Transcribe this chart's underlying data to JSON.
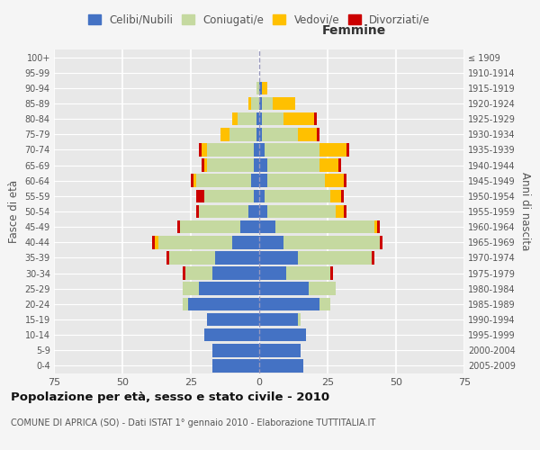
{
  "age_groups": [
    "0-4",
    "5-9",
    "10-14",
    "15-19",
    "20-24",
    "25-29",
    "30-34",
    "35-39",
    "40-44",
    "45-49",
    "50-54",
    "55-59",
    "60-64",
    "65-69",
    "70-74",
    "75-79",
    "80-84",
    "85-89",
    "90-94",
    "95-99",
    "100+"
  ],
  "birth_years": [
    "2005-2009",
    "2000-2004",
    "1995-1999",
    "1990-1994",
    "1985-1989",
    "1980-1984",
    "1975-1979",
    "1970-1974",
    "1965-1969",
    "1960-1964",
    "1955-1959",
    "1950-1954",
    "1945-1949",
    "1940-1944",
    "1935-1939",
    "1930-1934",
    "1925-1929",
    "1920-1924",
    "1915-1919",
    "1910-1914",
    "≤ 1909"
  ],
  "male": {
    "celibe": [
      17,
      17,
      20,
      19,
      26,
      22,
      17,
      16,
      10,
      7,
      4,
      2,
      3,
      2,
      2,
      1,
      1,
      0,
      0,
      0,
      0
    ],
    "coniugato": [
      0,
      0,
      0,
      0,
      2,
      6,
      10,
      17,
      27,
      22,
      18,
      18,
      20,
      17,
      17,
      10,
      7,
      3,
      1,
      0,
      0
    ],
    "vedovo": [
      0,
      0,
      0,
      0,
      0,
      0,
      0,
      0,
      1,
      0,
      0,
      0,
      1,
      1,
      2,
      3,
      2,
      1,
      0,
      0,
      0
    ],
    "divorziato": [
      0,
      0,
      0,
      0,
      0,
      0,
      1,
      1,
      1,
      1,
      1,
      3,
      1,
      1,
      1,
      0,
      0,
      0,
      0,
      0,
      0
    ]
  },
  "female": {
    "nubile": [
      16,
      15,
      17,
      14,
      22,
      18,
      10,
      14,
      9,
      6,
      3,
      2,
      3,
      3,
      2,
      1,
      1,
      1,
      1,
      0,
      0
    ],
    "coniugata": [
      0,
      0,
      0,
      1,
      4,
      10,
      16,
      27,
      35,
      36,
      25,
      24,
      21,
      19,
      20,
      13,
      8,
      4,
      0,
      0,
      0
    ],
    "vedova": [
      0,
      0,
      0,
      0,
      0,
      0,
      0,
      0,
      0,
      1,
      3,
      4,
      7,
      7,
      10,
      7,
      11,
      8,
      2,
      0,
      0
    ],
    "divorziata": [
      0,
      0,
      0,
      0,
      0,
      0,
      1,
      1,
      1,
      1,
      1,
      1,
      1,
      1,
      1,
      1,
      1,
      0,
      0,
      0,
      0
    ]
  },
  "colors": {
    "celibe": "#4472c4",
    "coniugato": "#c5d9a0",
    "vedovo": "#ffc000",
    "divorziato": "#cc0000"
  },
  "xlim": 75,
  "title": "Popolazione per età, sesso e stato civile - 2010",
  "subtitle": "COMUNE DI APRICA (SO) - Dati ISTAT 1° gennaio 2010 - Elaborazione TUTTITALIA.IT",
  "ylabel_left": "Fasce di età",
  "ylabel_right": "Anni di nascita",
  "xlabel_female": "Femmine",
  "legend_labels": [
    "Celibi/Nubili",
    "Coniugati/e",
    "Vedovi/e",
    "Divorziati/e"
  ],
  "bg_color": "#f5f5f5",
  "plot_bg": "#e8e8e8",
  "grid_color": "#ffffff"
}
